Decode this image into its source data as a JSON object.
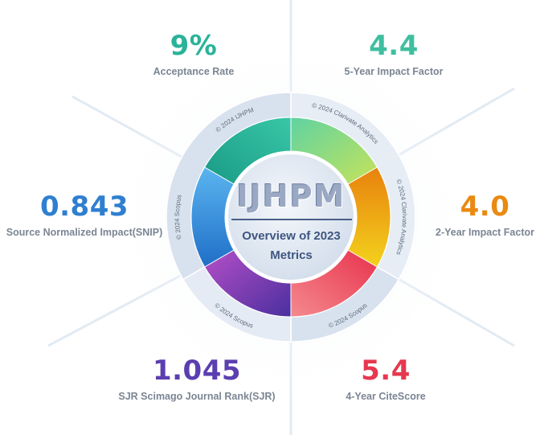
{
  "center": {
    "logo": "IJHPM",
    "subtitle_line1": "Overview of 2023",
    "subtitle_line2": "Metrics"
  },
  "metrics": [
    {
      "key": "acceptance",
      "value": "9%",
      "label": "Acceptance Rate",
      "color": "#2ab39a"
    },
    {
      "key": "five_year_if",
      "value": "4.4",
      "label": "5-Year Impact Factor",
      "color": "#3fbf9f"
    },
    {
      "key": "snip",
      "value": "0.843",
      "label": "Source Normalized Impact(SNIP)",
      "color": "#2f7fd0"
    },
    {
      "key": "two_year_if",
      "value": "4.0",
      "label": "2-Year Impact Factor",
      "color": "#e98a12"
    },
    {
      "key": "sjr",
      "value": "1.045",
      "label": "SJR Scimago Journal Rank(SJR)",
      "color": "#5b3fb0"
    },
    {
      "key": "citescore",
      "value": "5.4",
      "label": "4-Year CiteScore",
      "color": "#e53950"
    }
  ],
  "ring_captions": {
    "ijhpm": "© 2024 IJHPM",
    "clarivate_top": "© 2024 Clarivate Analytics",
    "clarivate_right": "© 2024 Clarivate Analytics",
    "scopus_right": "© 2024 Scopus",
    "scopus_bottom": "© 2024 Scopus",
    "scopus_left": "© 2024 Scopus"
  }
}
